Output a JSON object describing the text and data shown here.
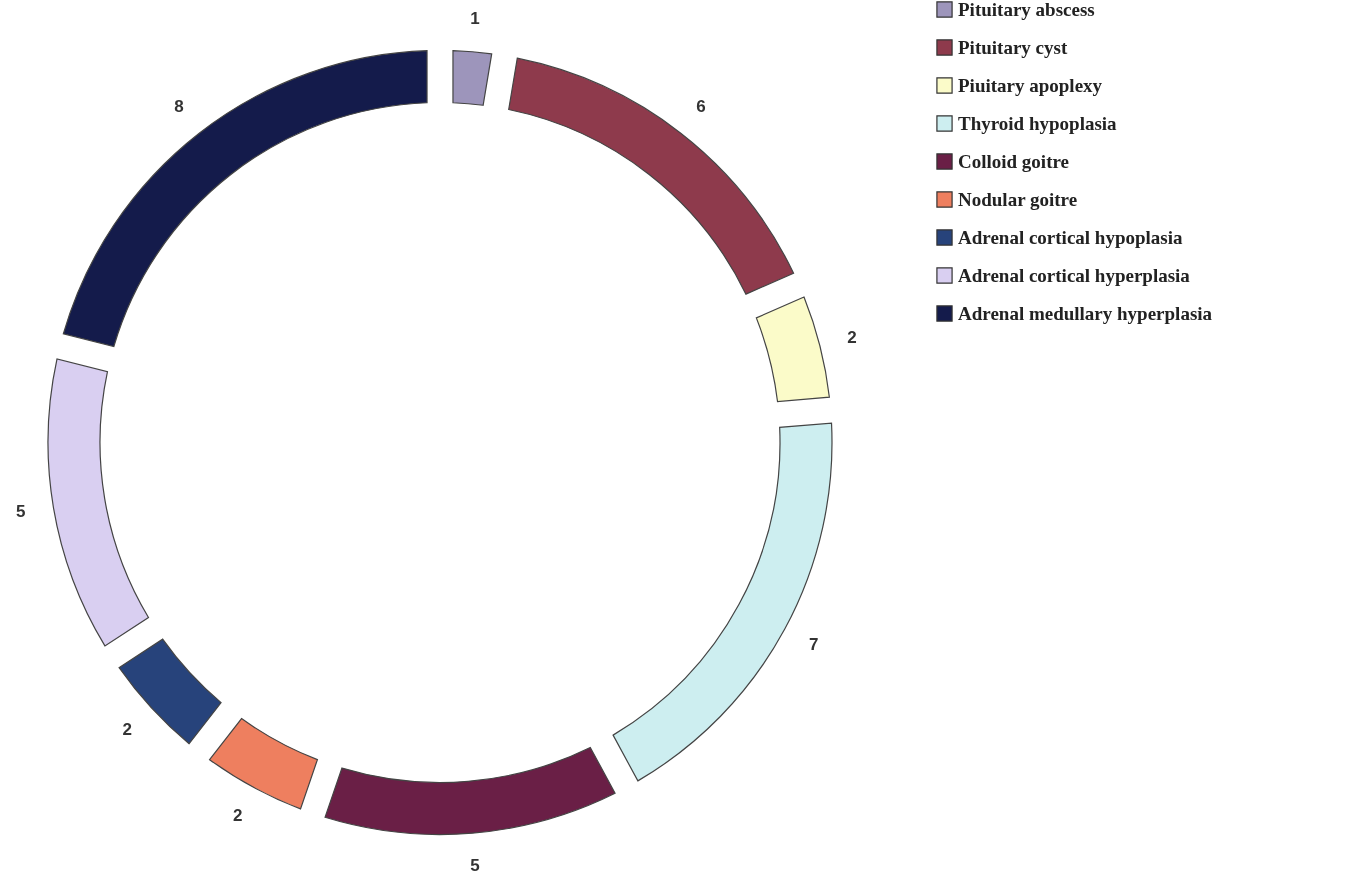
{
  "chart_data": {
    "type": "donut",
    "categories": [
      "Pituitary abscess",
      "Pituitary cyst",
      "Piuitary apoplexy",
      "Thyroid hypoplasia",
      "Colloid goitre",
      "Nodular goitre",
      "Adrenal cortical hypoplasia",
      "Adrenal cortical hyperplasia",
      "Adrenal medullary hyperplasia"
    ],
    "values": [
      1,
      6,
      2,
      7,
      5,
      2,
      2,
      5,
      8
    ],
    "colors": [
      "#9d95bb",
      "#8e3a4c",
      "#fbfbc9",
      "#cdeef0",
      "#6a1f46",
      "#ee7f5f",
      "#27437b",
      "#d9cff1",
      "#141b4b"
    ],
    "data_labels": true,
    "legend": "right"
  }
}
